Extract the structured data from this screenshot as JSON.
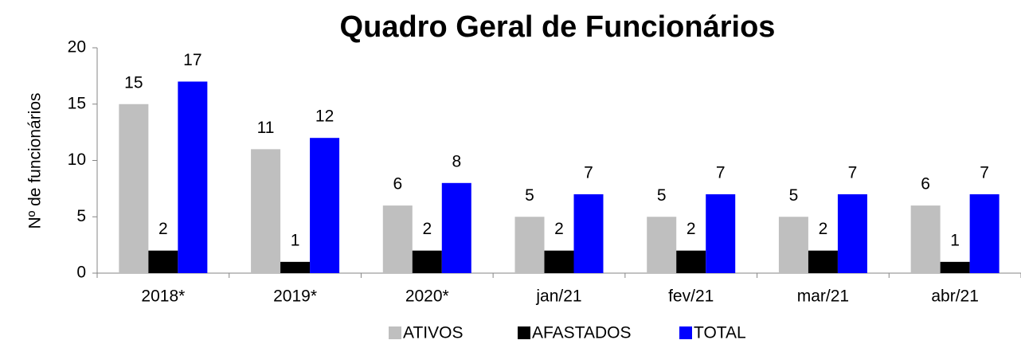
{
  "chart_data": {
    "type": "bar",
    "title": "Quadro Geral de Funcionários",
    "y_label": "Nº de funcionários",
    "categories": [
      "2018*",
      "2019*",
      "2020*",
      "jan/21",
      "fev/21",
      "mar/21",
      "abr/21"
    ],
    "series": [
      {
        "name": "ATIVOS",
        "color": "#bfbfbf",
        "values": [
          15,
          11,
          6,
          5,
          5,
          5,
          6
        ]
      },
      {
        "name": "AFASTADOS",
        "color": "#000000",
        "values": [
          2,
          1,
          2,
          2,
          2,
          2,
          1
        ]
      },
      {
        "name": "TOTAL",
        "color": "#0000ff",
        "values": [
          17,
          12,
          8,
          7,
          7,
          7,
          7
        ]
      }
    ],
    "ylim": [
      0,
      20
    ],
    "yticks": [
      0,
      5,
      10,
      15,
      20
    ],
    "grid": false,
    "legend": "bottom"
  }
}
